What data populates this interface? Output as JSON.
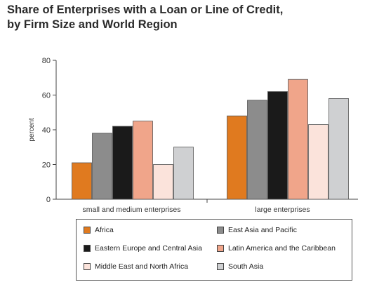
{
  "title_line1": "Share of Enterprises with a Loan or Line of Credit,",
  "title_line2": " by Firm Size and World Region",
  "chart_data": {
    "type": "bar",
    "title": "Share of Enterprises with a Loan or Line of Credit, by Firm Size and World Region",
    "ylabel": "percent",
    "xlabel": "",
    "ylim": [
      0,
      80
    ],
    "yticks": [
      0,
      20,
      40,
      60,
      80
    ],
    "grid": false,
    "legend_position": "bottom",
    "categories": [
      "small and medium enterprises",
      "large enterprises"
    ],
    "series": [
      {
        "name": "Africa",
        "color": "#e07a1f",
        "values": [
          21,
          48
        ]
      },
      {
        "name": "East Asia and Pacific",
        "color": "#8c8c8c",
        "values": [
          38,
          57
        ]
      },
      {
        "name": "Eastern Europe and Central Asia",
        "color": "#1a1a1a",
        "values": [
          42,
          62
        ]
      },
      {
        "name": "Latin America and the Caribbean",
        "color": "#f0a58a",
        "values": [
          45,
          69
        ]
      },
      {
        "name": "Middle East and North Africa",
        "color": "#fbe3db",
        "values": [
          20,
          43
        ]
      },
      {
        "name": "South Asia",
        "color": "#cfd0d2",
        "values": [
          30,
          58
        ]
      }
    ]
  }
}
